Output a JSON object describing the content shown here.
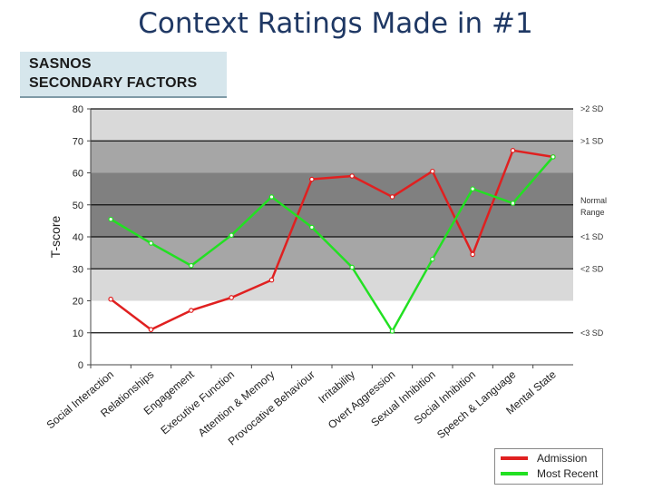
{
  "page": {
    "title": "Context Ratings Made in #1"
  },
  "header": {
    "line1": "SASNOS",
    "line2": "SECONDARY FACTORS"
  },
  "chart_data": {
    "type": "line",
    "title": "SASNOS SECONDARY FACTORS",
    "xlabel": "",
    "ylabel": "T-score",
    "ylim": [
      0,
      80
    ],
    "yticks": [
      "0",
      "10",
      "20",
      "30",
      "40",
      "50",
      "60",
      "70",
      "80"
    ],
    "categories": [
      "Social Interaction",
      "Relationships",
      "Engagement",
      "Executive Function",
      "Attention & Memory",
      "Provocative Behaviour",
      "Irritability",
      "Overt Aggression",
      "Sexual Inhibition",
      "Social Inhibition",
      "Speech & Language",
      "Mental State"
    ],
    "series": [
      {
        "name": "Admission",
        "color": "#e02020",
        "values": [
          20.5,
          11,
          17,
          21,
          26.5,
          58,
          59,
          52.5,
          60.5,
          34.5,
          67,
          65
        ]
      },
      {
        "name": "Most Recent",
        "color": "#22e022",
        "values": [
          45.5,
          38,
          31,
          40.5,
          52.5,
          43,
          30.5,
          10.5,
          33,
          55,
          50.5,
          65
        ]
      }
    ],
    "bands": [
      {
        "from": 10,
        "to": 20,
        "color": "#ffffff"
      },
      {
        "from": 20,
        "to": 30,
        "color": "#d9d9d9"
      },
      {
        "from": 30,
        "to": 40,
        "color": "#a6a6a6"
      },
      {
        "from": 40,
        "to": 60,
        "color": "#808080"
      },
      {
        "from": 60,
        "to": 70,
        "color": "#a6a6a6"
      },
      {
        "from": 70,
        "to": 80,
        "color": "#d9d9d9"
      }
    ],
    "reference_lines": [
      {
        "value": 80,
        "label": ">2 SD"
      },
      {
        "value": 70,
        "label": ">1 SD"
      },
      {
        "value": 50,
        "label": "Normal Range"
      },
      {
        "value": 40,
        "label": "<1 SD"
      },
      {
        "value": 30,
        "label": "<2 SD"
      },
      {
        "value": 10,
        "label": "<3 SD"
      }
    ],
    "legend": [
      "Admission",
      "Most Recent"
    ],
    "legend_position": "bottom-right"
  }
}
